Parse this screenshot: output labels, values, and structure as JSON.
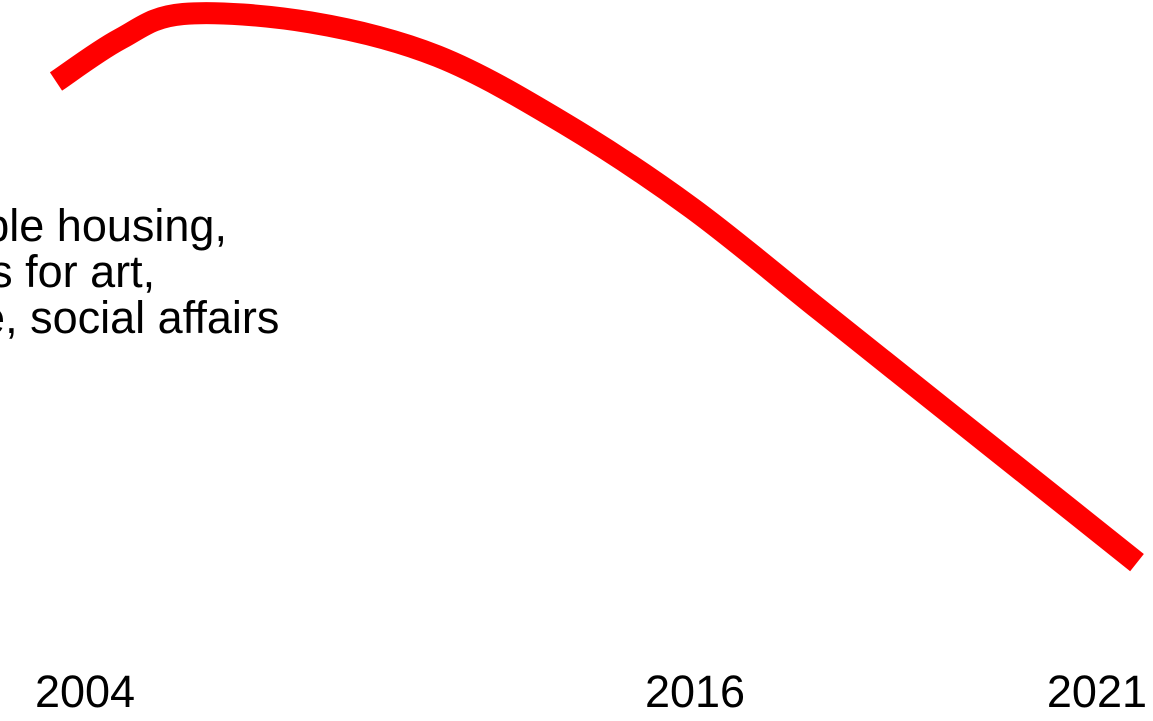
{
  "chart_data": {
    "type": "line",
    "title": "",
    "xlabel": "",
    "ylabel": "",
    "x_ticks": [
      "2004",
      "2016",
      "2021"
    ],
    "annotation_lines": [
      "ffordable housing,",
      "spaces for art,",
      "culture, social affairs"
    ],
    "series": [
      {
        "color": "#ff0000",
        "points": [
          {
            "x": 2004.0,
            "y": 93.0
          },
          {
            "x": 2005.0,
            "y": 98.0
          },
          {
            "x": 2006.0,
            "y": 101.0
          },
          {
            "x": 2008.0,
            "y": 100.0
          },
          {
            "x": 2010.0,
            "y": 96.0
          },
          {
            "x": 2012.0,
            "y": 88.0
          },
          {
            "x": 2014.0,
            "y": 78.0
          },
          {
            "x": 2016.0,
            "y": 66.0
          },
          {
            "x": 2018.0,
            "y": 54.0
          },
          {
            "x": 2020.0,
            "y": 42.0
          },
          {
            "x": 2021.0,
            "y": 36.0
          }
        ]
      }
    ],
    "grid": false,
    "legend": "none"
  }
}
